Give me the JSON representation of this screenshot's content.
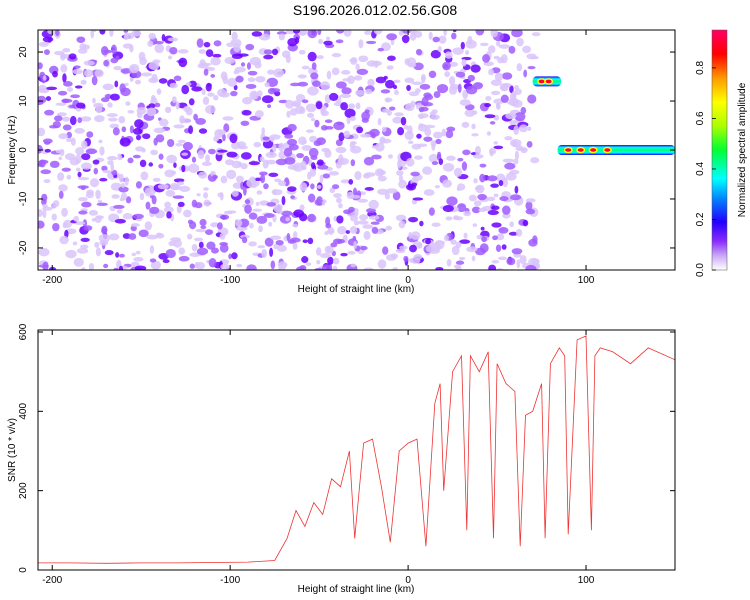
{
  "title": "S196.2026.012.02.56.G08",
  "chart_data": [
    {
      "type": "heatmap",
      "title": "S196.2026.012.02.56.G08",
      "xlabel": "Height of straight line (km)",
      "ylabel": "Frequency (Hz)",
      "xlim": [
        -208,
        150
      ],
      "ylim": [
        -24.5,
        24.5
      ],
      "xticks": [
        -200,
        -100,
        0,
        100
      ],
      "yticks": [
        -20,
        -10,
        0,
        10,
        20
      ],
      "colorbar": {
        "label": "Normalized spectral amplitude",
        "range": [
          0,
          0.95
        ],
        "ticks": [
          "0.0",
          "0.2",
          "0.4",
          "0.6",
          "0.8"
        ],
        "tick_values": [
          0.0,
          0.2,
          0.4,
          0.6,
          0.8
        ],
        "colormap": [
          "#ffffff",
          "#c9a8f6",
          "#9b3cff",
          "#6a00ff",
          "#0000ff",
          "#00b4ff",
          "#00ffff",
          "#00ff66",
          "#7fff00",
          "#ffff00",
          "#ff9900",
          "#ff0000",
          "#ff0066"
        ]
      },
      "noise_region": {
        "x_range": [
          -208,
          72
        ],
        "amplitude_range": [
          0.03,
          0.3
        ],
        "density": "high"
      },
      "gap_region": {
        "x_range": [
          86,
          150
        ]
      },
      "signal_traces": [
        {
          "x_range": [
            70,
            86
          ],
          "frequency": 14,
          "peak_amplitude": 0.95,
          "peaks_at": [
            75,
            79
          ]
        },
        {
          "x_range": [
            84,
            150
          ],
          "frequency": 0,
          "peak_amplitude": 0.95,
          "peaks_at": [
            90,
            97,
            104,
            112
          ]
        }
      ],
      "colors": {
        "noise_light": "#d9c4fa",
        "noise_mid": "#a05cff",
        "noise_dark": "#6a00ff"
      }
    },
    {
      "type": "line",
      "xlabel": "Height of straight line (km)",
      "ylabel": "SNR (10 * v/v)",
      "xlim": [
        -208,
        150
      ],
      "ylim": [
        0,
        605
      ],
      "xticks": [
        -200,
        -100,
        0,
        100
      ],
      "yticks": [
        0,
        200,
        400,
        600
      ],
      "line_color": "#ee3333",
      "x": [
        -208,
        -190,
        -170,
        -150,
        -130,
        -110,
        -90,
        -75,
        -68,
        -63,
        -58,
        -53,
        -48,
        -43,
        -38,
        -33,
        -30,
        -25,
        -20,
        -15,
        -10,
        -5,
        0,
        5,
        10,
        15,
        18,
        20,
        25,
        30,
        33,
        35,
        40,
        45,
        48,
        50,
        55,
        60,
        63,
        66,
        70,
        75,
        77,
        80,
        85,
        88,
        90,
        95,
        100,
        103,
        105,
        108,
        115,
        125,
        135,
        150
      ],
      "y": [
        18,
        18,
        17,
        18,
        18,
        19,
        20,
        24,
        80,
        150,
        110,
        170,
        140,
        230,
        210,
        300,
        80,
        320,
        330,
        210,
        70,
        300,
        320,
        330,
        60,
        420,
        470,
        200,
        500,
        540,
        100,
        540,
        500,
        550,
        80,
        520,
        470,
        450,
        60,
        390,
        400,
        470,
        80,
        520,
        560,
        540,
        90,
        580,
        590,
        100,
        540,
        560,
        550,
        520,
        560,
        530
      ]
    }
  ]
}
